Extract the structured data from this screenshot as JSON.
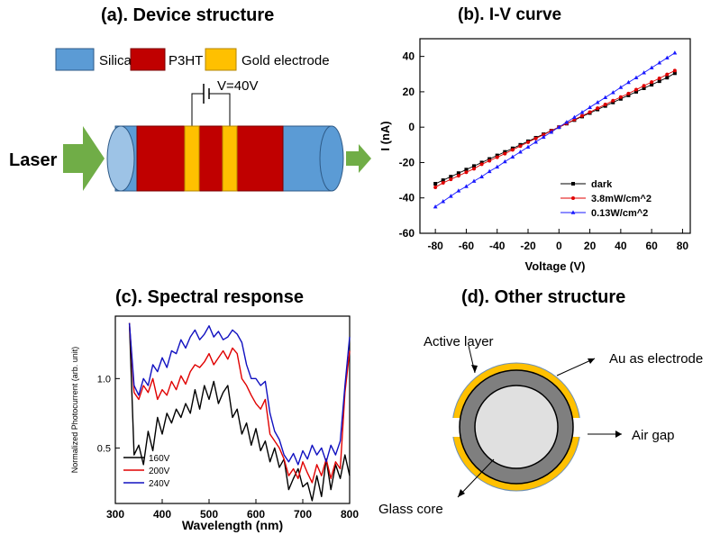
{
  "panels": {
    "a": {
      "title": "(a). Device structure",
      "legend": [
        {
          "label": "Silica",
          "color": "#5b9bd5"
        },
        {
          "label": "P3HT",
          "color": "#c00000"
        },
        {
          "label": "Gold electrode",
          "color": "#ffc000"
        }
      ],
      "voltage_label": "V=40V",
      "laser_label": "Laser",
      "arrow_color": "#70ad47"
    },
    "b": {
      "title": "(b). I-V curve"
    },
    "c": {
      "title": "(c). Spectral response"
    },
    "d": {
      "title": "(d). Other structure",
      "labels": {
        "active_layer": "Active layer",
        "electrode": "Au as electrode",
        "air_gap": "Air gap",
        "glass_core": "Glass core"
      },
      "colors": {
        "gold": "#ffc000",
        "active": "#7f7f7f",
        "core": "#e0e0e0"
      }
    }
  },
  "chart_data": [
    {
      "type": "line",
      "panel": "b",
      "xlabel": "Voltage (V)",
      "ylabel": "I (nA)",
      "xlim": [
        -90,
        85
      ],
      "ylim": [
        -60,
        50
      ],
      "xticks": [
        -80,
        -60,
        -40,
        -20,
        0,
        20,
        40,
        60,
        80
      ],
      "yticks": [
        -60,
        -40,
        -20,
        0,
        20,
        40
      ],
      "legend_position": "bottom-right",
      "series": [
        {
          "name": "dark",
          "color": "#000000",
          "marker": "square",
          "x": [
            -80,
            -75,
            -70,
            -65,
            -60,
            -55,
            -50,
            -45,
            -40,
            -35,
            -30,
            -25,
            -20,
            -15,
            -10,
            -5,
            0,
            5,
            10,
            15,
            20,
            25,
            30,
            35,
            40,
            45,
            50,
            55,
            60,
            65,
            70,
            75
          ],
          "y": [
            -32,
            -30,
            -28,
            -26,
            -24,
            -22,
            -20,
            -18,
            -16,
            -14,
            -12,
            -10,
            -8,
            -6,
            -4,
            -2,
            0,
            2,
            4,
            6,
            8,
            10,
            12,
            14,
            16,
            18,
            20,
            22,
            24,
            26,
            28,
            30.5
          ]
        },
        {
          "name": "3.8mW/cm^2",
          "color": "#e00000",
          "marker": "circle",
          "x": [
            -80,
            -75,
            -70,
            -65,
            -60,
            -55,
            -50,
            -45,
            -40,
            -35,
            -30,
            -25,
            -20,
            -15,
            -10,
            -5,
            0,
            5,
            10,
            15,
            20,
            25,
            30,
            35,
            40,
            45,
            50,
            55,
            60,
            65,
            70,
            75
          ],
          "y": [
            -34,
            -31.5,
            -29.5,
            -27.5,
            -25.5,
            -23.5,
            -21,
            -19,
            -17,
            -15,
            -12.8,
            -10.7,
            -8.5,
            -6.4,
            -4.3,
            -2.1,
            0,
            2.1,
            4.3,
            6.4,
            8.5,
            10.7,
            12.8,
            15,
            17,
            19,
            21.2,
            23.4,
            25.5,
            27.6,
            29.8,
            32
          ]
        },
        {
          "name": "0.13W/cm^2",
          "color": "#1a1aff",
          "marker": "triangle",
          "x": [
            -80,
            -75,
            -70,
            -65,
            -60,
            -55,
            -50,
            -45,
            -40,
            -35,
            -30,
            -25,
            -20,
            -15,
            -10,
            -5,
            0,
            5,
            10,
            15,
            20,
            25,
            30,
            35,
            40,
            45,
            50,
            55,
            60,
            65,
            70,
            75
          ],
          "y": [
            -45,
            -42,
            -39,
            -36,
            -33.5,
            -30.5,
            -28,
            -25,
            -22.5,
            -19.5,
            -16.8,
            -14,
            -11.2,
            -8.4,
            -5.6,
            -2.8,
            0,
            2.8,
            5.6,
            8.4,
            11.2,
            14,
            16.8,
            19.6,
            22.5,
            25.3,
            28,
            30.8,
            33.6,
            36.4,
            39.2,
            42
          ]
        }
      ]
    },
    {
      "type": "line",
      "panel": "c",
      "xlabel": "Wavelength (nm)",
      "ylabel": "Normalized Photocurrent (arb. unit)",
      "xlim": [
        300,
        800
      ],
      "ylim": [
        0.1,
        1.45
      ],
      "xticks": [
        300,
        400,
        500,
        600,
        700,
        800
      ],
      "yticks": [
        0.5,
        1.0
      ],
      "legend_position": "bottom-left",
      "series": [
        {
          "name": "160V",
          "color": "#000000",
          "x": [
            330,
            340,
            350,
            360,
            370,
            380,
            390,
            400,
            410,
            420,
            430,
            440,
            450,
            460,
            470,
            480,
            490,
            500,
            510,
            520,
            530,
            540,
            550,
            560,
            570,
            580,
            590,
            600,
            610,
            620,
            630,
            640,
            650,
            660,
            670,
            680,
            690,
            700,
            710,
            720,
            730,
            740,
            750,
            760,
            770,
            780,
            790,
            800
          ],
          "y": [
            1.4,
            0.45,
            0.52,
            0.38,
            0.62,
            0.48,
            0.72,
            0.6,
            0.75,
            0.68,
            0.78,
            0.72,
            0.82,
            0.75,
            0.92,
            0.78,
            0.95,
            0.85,
            0.98,
            0.82,
            0.9,
            0.95,
            0.72,
            0.78,
            0.6,
            0.68,
            0.52,
            0.64,
            0.48,
            0.55,
            0.4,
            0.5,
            0.36,
            0.42,
            0.2,
            0.28,
            0.35,
            0.22,
            0.25,
            0.12,
            0.3,
            0.15,
            0.42,
            0.2,
            0.38,
            0.28,
            0.45,
            0.3
          ]
        },
        {
          "name": "200V",
          "color": "#e00000",
          "x": [
            330,
            340,
            350,
            360,
            370,
            380,
            390,
            400,
            410,
            420,
            430,
            440,
            450,
            460,
            470,
            480,
            490,
            500,
            510,
            520,
            530,
            540,
            550,
            560,
            570,
            580,
            590,
            600,
            610,
            620,
            630,
            640,
            650,
            660,
            670,
            680,
            690,
            700,
            710,
            720,
            730,
            740,
            750,
            760,
            770,
            780,
            790,
            800
          ],
          "y": [
            1.4,
            0.9,
            0.85,
            0.95,
            0.9,
            1.0,
            0.85,
            0.92,
            0.88,
            0.98,
            0.92,
            1.02,
            0.96,
            1.05,
            1.1,
            1.08,
            1.12,
            1.18,
            1.1,
            1.15,
            1.2,
            1.14,
            1.22,
            1.18,
            1.0,
            0.95,
            0.88,
            0.82,
            0.78,
            0.85,
            0.6,
            0.55,
            0.5,
            0.42,
            0.3,
            0.35,
            0.28,
            0.4,
            0.32,
            0.25,
            0.38,
            0.3,
            0.42,
            0.28,
            0.4,
            0.35,
            0.9,
            1.2
          ]
        },
        {
          "name": "240V",
          "color": "#1010c0",
          "x": [
            330,
            340,
            350,
            360,
            370,
            380,
            390,
            400,
            410,
            420,
            430,
            440,
            450,
            460,
            470,
            480,
            490,
            500,
            510,
            520,
            530,
            540,
            550,
            560,
            570,
            580,
            590,
            600,
            610,
            620,
            630,
            640,
            650,
            660,
            670,
            680,
            690,
            700,
            710,
            720,
            730,
            740,
            750,
            760,
            770,
            780,
            790,
            800
          ],
          "y": [
            1.4,
            0.95,
            0.88,
            1.0,
            0.95,
            1.1,
            1.05,
            1.15,
            1.08,
            1.2,
            1.18,
            1.28,
            1.22,
            1.3,
            1.35,
            1.28,
            1.32,
            1.38,
            1.3,
            1.34,
            1.28,
            1.3,
            1.35,
            1.32,
            1.26,
            1.1,
            1.0,
            1.0,
            0.95,
            0.98,
            0.75,
            0.62,
            0.56,
            0.45,
            0.4,
            0.46,
            0.38,
            0.48,
            0.42,
            0.52,
            0.45,
            0.5,
            0.4,
            0.52,
            0.45,
            0.55,
            0.95,
            1.3
          ]
        }
      ]
    }
  ]
}
